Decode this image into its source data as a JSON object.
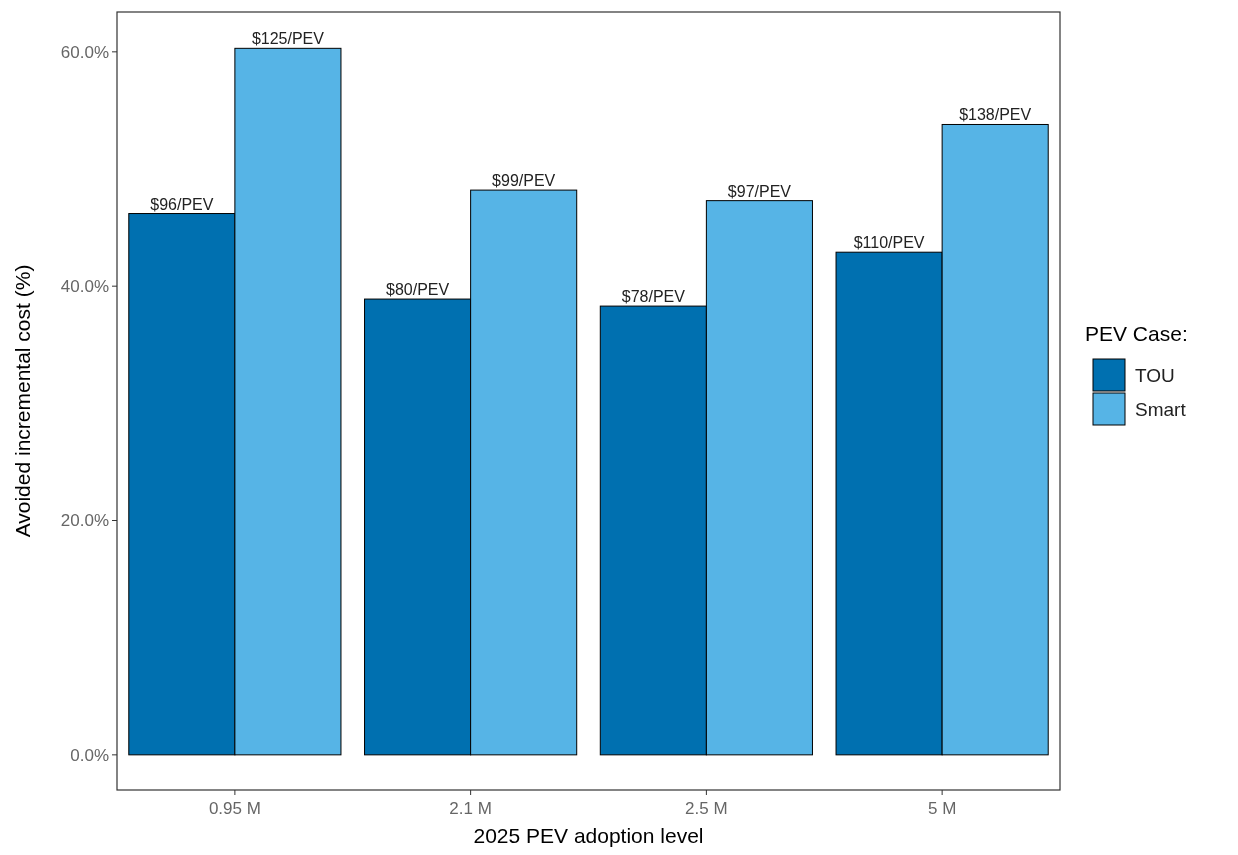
{
  "chart_data": {
    "type": "bar",
    "xlabel": "2025 PEV adoption level",
    "ylabel": "Avoided incremental cost (%)",
    "legend_title": "PEV Case:",
    "categories": [
      "0.95 M",
      "2.1 M",
      "2.5 M",
      "5 M"
    ],
    "series": [
      {
        "name": "TOU",
        "color": "#0070b0",
        "values": [
          46.2,
          38.9,
          38.3,
          42.9
        ]
      },
      {
        "name": "Smart",
        "color": "#56b4e6",
        "values": [
          60.3,
          48.2,
          47.3,
          53.8
        ]
      }
    ],
    "annotations": [
      {
        "text": "$96/PEV",
        "x": "0.95 M",
        "y": 46.2
      },
      {
        "text": "$125/PEV",
        "x": "0.95 M",
        "y": 60.3
      },
      {
        "text": "$80/PEV",
        "x": "2.1 M",
        "y": 38.9
      },
      {
        "text": "$99/PEV",
        "x": "2.1 M",
        "y": 48.2
      },
      {
        "text": "$78/PEV",
        "x": "2.5 M",
        "y": 38.3
      },
      {
        "text": "$97/PEV",
        "x": "2.5 M",
        "y": 47.3
      },
      {
        "text": "$110/PEV",
        "x": "5 M",
        "y": 42.9
      },
      {
        "text": "$138/PEV",
        "x": "5 M",
        "y": 53.8
      }
    ],
    "ylim": [
      -3.0,
      63.4
    ],
    "yticks": [
      {
        "value": 0,
        "label": "0.0%"
      },
      {
        "value": 20,
        "label": "20.0%"
      },
      {
        "value": 40,
        "label": "40.0%"
      },
      {
        "value": 60,
        "label": "60.0%"
      }
    ],
    "grid": false,
    "legend": "right"
  }
}
